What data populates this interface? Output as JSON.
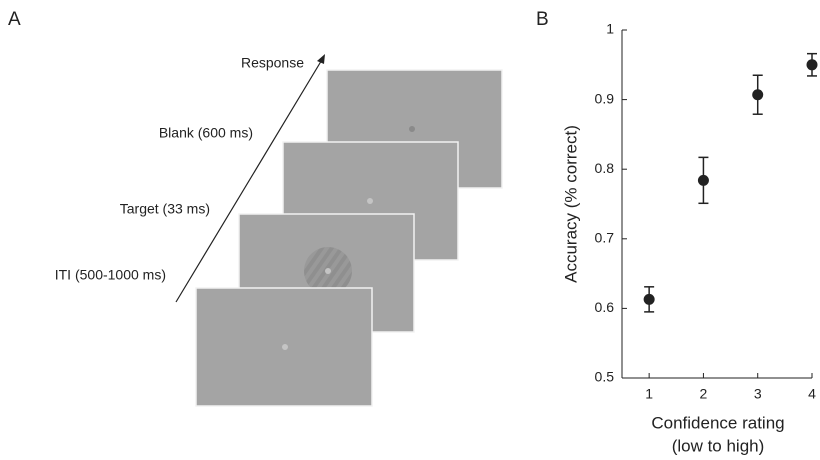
{
  "panel_a": {
    "label": "A",
    "steps": [
      "Response",
      "Blank (600 ms)",
      "Target (33 ms)",
      "ITI (500-1000 ms)"
    ]
  },
  "chart_data": {
    "type": "scatter",
    "label": "B",
    "xlabel": [
      "Confidence rating",
      "(low to high)"
    ],
    "ylabel": "Accuracy (% correct)",
    "x": [
      1,
      2,
      3,
      4
    ],
    "values": [
      0.613,
      0.784,
      0.907,
      0.95
    ],
    "errors": [
      0.018,
      0.033,
      0.028,
      0.016
    ],
    "color": "#222222",
    "xlim": [
      0.5,
      4
    ],
    "ylim": [
      0.5,
      1
    ],
    "xticks": [
      1,
      2,
      3,
      4
    ],
    "yticks": [
      0.5,
      0.6,
      0.7,
      0.8,
      0.9,
      1
    ]
  }
}
